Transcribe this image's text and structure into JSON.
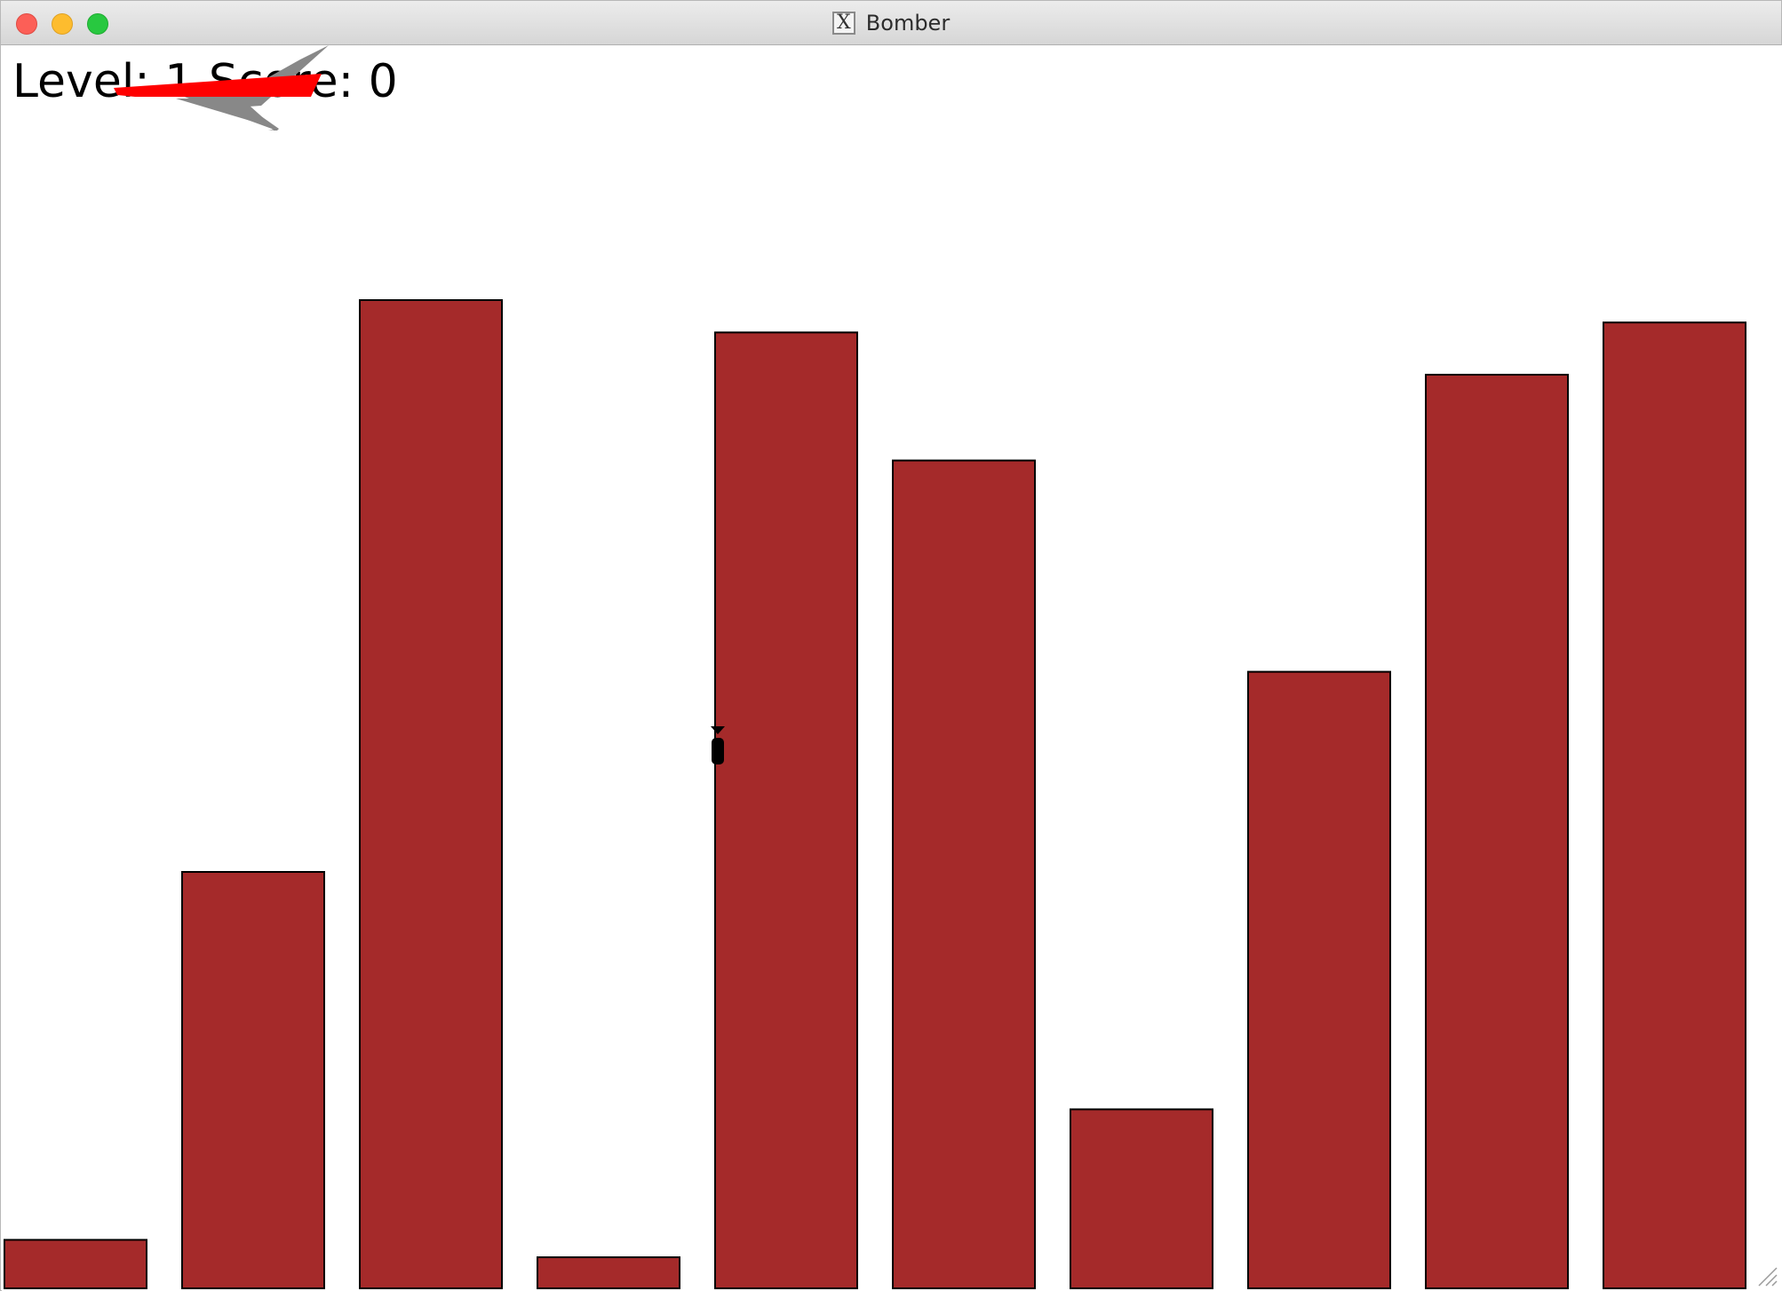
{
  "window": {
    "title": "Bomber",
    "app_icon": "x11-icon",
    "app_icon_glyph": "X",
    "buttons": [
      "close",
      "minimize",
      "maximize"
    ]
  },
  "hud": {
    "text": "Level: 1  Score: 0"
  },
  "game": {
    "colors": {
      "background": "#ffffff",
      "building": "#a52a2a",
      "building_outline": "#000000",
      "plane_body": "#ff0000",
      "plane_wings": "#888888",
      "bomb": "#000000"
    },
    "sprites": [
      "plane",
      "bomb"
    ],
    "buildings": [
      {
        "name": "building-1",
        "height_fraction": 0.039
      },
      {
        "name": "building-2",
        "height_fraction": 0.335
      },
      {
        "name": "building-3",
        "height_fraction": 0.795
      },
      {
        "name": "building-4",
        "height_fraction": 0.025
      },
      {
        "name": "building-5",
        "height_fraction": 0.769
      },
      {
        "name": "building-6",
        "height_fraction": 0.666
      },
      {
        "name": "building-7",
        "height_fraction": 0.144
      },
      {
        "name": "building-8",
        "height_fraction": 0.496
      },
      {
        "name": "building-9",
        "height_fraction": 0.735
      },
      {
        "name": "building-10",
        "height_fraction": 0.777
      }
    ]
  }
}
